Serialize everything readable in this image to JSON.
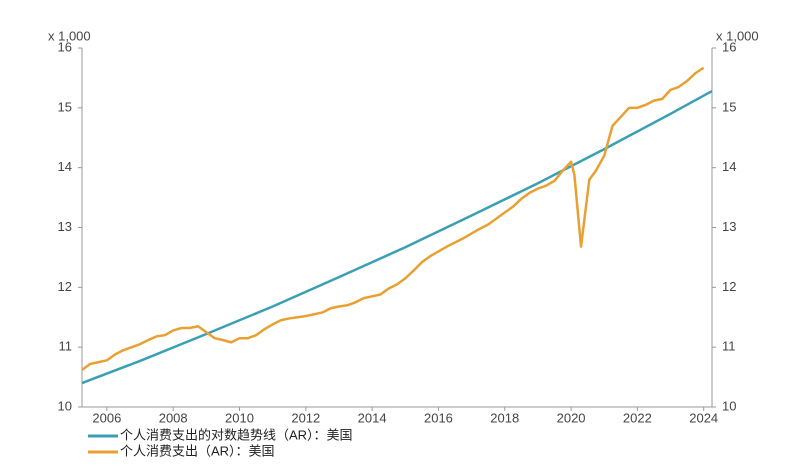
{
  "chart_data": {
    "type": "line",
    "y_label": "x 1,000",
    "y2_label": "x 1,000",
    "xlim": [
      2005.25,
      2024.25
    ],
    "xticks": [
      2006,
      2008,
      2010,
      2012,
      2014,
      2016,
      2018,
      2020,
      2022,
      2024
    ],
    "ylim": [
      10,
      16
    ],
    "yticks": [
      10,
      11,
      12,
      13,
      14,
      15,
      16
    ],
    "y2lim": [
      10,
      16
    ],
    "y2ticks": [
      10,
      11,
      12,
      13,
      14,
      15,
      16
    ],
    "series": [
      {
        "name": "个人消费支出的对数趋势线（AR）：美国",
        "color": "#3a9fb5",
        "x": [
          2005.25,
          2007,
          2009,
          2011,
          2013,
          2015,
          2017,
          2019,
          2021,
          2023,
          2024.25
        ],
        "values": [
          10.4,
          10.77,
          11.22,
          11.68,
          12.17,
          12.67,
          13.2,
          13.74,
          14.31,
          14.9,
          15.28
        ]
      },
      {
        "name": "个人消费支出（AR）：美国",
        "color": "#e8a032",
        "x": [
          2005.25,
          2005.5,
          2005.75,
          2006,
          2006.25,
          2006.5,
          2006.75,
          2007,
          2007.25,
          2007.5,
          2007.75,
          2008,
          2008.25,
          2008.5,
          2008.75,
          2009,
          2009.25,
          2009.5,
          2009.75,
          2010,
          2010.25,
          2010.5,
          2010.75,
          2011,
          2011.25,
          2011.5,
          2011.75,
          2012,
          2012.25,
          2012.5,
          2012.75,
          2013,
          2013.25,
          2013.5,
          2013.75,
          2014,
          2014.25,
          2014.5,
          2014.75,
          2015,
          2015.25,
          2015.5,
          2015.75,
          2016,
          2016.25,
          2016.5,
          2016.75,
          2017,
          2017.25,
          2017.5,
          2017.75,
          2018,
          2018.25,
          2018.5,
          2018.75,
          2019,
          2019.25,
          2019.5,
          2019.75,
          2020,
          2020.1,
          2020.3,
          2020.55,
          2020.75,
          2021,
          2021.25,
          2021.5,
          2021.75,
          2022,
          2022.25,
          2022.5,
          2022.75,
          2023,
          2023.25,
          2023.5,
          2023.75,
          2024
        ],
        "values": [
          10.62,
          10.72,
          10.75,
          10.78,
          10.88,
          10.95,
          11.0,
          11.05,
          11.12,
          11.18,
          11.2,
          11.28,
          11.32,
          11.32,
          11.35,
          11.25,
          11.15,
          11.12,
          11.08,
          11.15,
          11.15,
          11.2,
          11.3,
          11.38,
          11.45,
          11.48,
          11.5,
          11.52,
          11.55,
          11.58,
          11.65,
          11.68,
          11.7,
          11.75,
          11.82,
          11.85,
          11.88,
          11.98,
          12.05,
          12.15,
          12.28,
          12.42,
          12.52,
          12.6,
          12.68,
          12.75,
          12.82,
          12.9,
          12.98,
          13.05,
          13.15,
          13.25,
          13.35,
          13.48,
          13.58,
          13.65,
          13.7,
          13.78,
          13.95,
          14.1,
          13.88,
          12.68,
          13.8,
          13.95,
          14.2,
          14.7,
          14.85,
          15.0,
          15.0,
          15.05,
          15.12,
          15.15,
          15.3,
          15.35,
          15.45,
          15.58,
          15.67
        ]
      }
    ]
  }
}
